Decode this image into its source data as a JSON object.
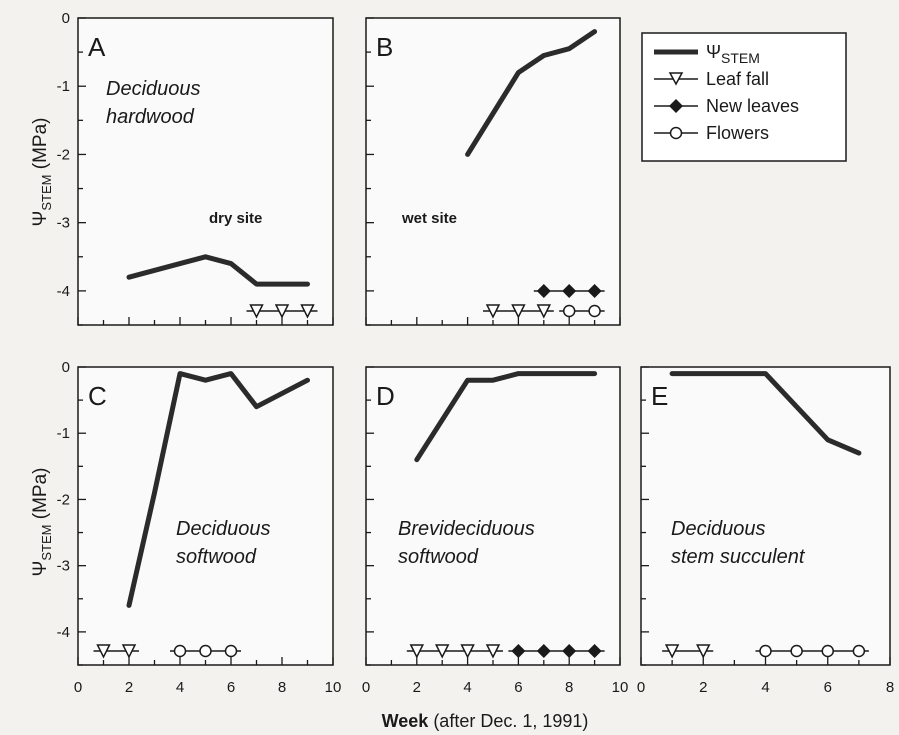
{
  "chart_data": {
    "type": "line",
    "ylabel": {
      "symbol": "Ψ",
      "sub": "STEM",
      "unit": " (MPa)"
    },
    "xlabel": {
      "bold": "Week",
      "rest": " (after Dec. 1, 1991)"
    },
    "legend": {
      "stem": {
        "symbol": "Ψ",
        "sub": "STEM"
      },
      "leaf_fall": "Leaf fall",
      "new_leaves": "New leaves",
      "flowers": "Flowers"
    },
    "panels": [
      {
        "letter": "A",
        "caption": [
          "Deciduous",
          "hardwood"
        ],
        "site": "dry site",
        "xlim": [
          0,
          10
        ],
        "ylim": [
          -4.5,
          0
        ],
        "show_xticklabels": false,
        "stem": [
          [
            2,
            -3.8
          ],
          [
            4,
            -3.6
          ],
          [
            5,
            -3.5
          ],
          [
            6,
            -3.6
          ],
          [
            7,
            -3.9
          ],
          [
            9,
            -3.9
          ]
        ],
        "leaf_fall": [
          7,
          8,
          9
        ],
        "new_leaves": [],
        "flowers": []
      },
      {
        "letter": "B",
        "caption": [],
        "site": "wet site",
        "xlim": [
          0,
          10
        ],
        "ylim": [
          -4.5,
          0
        ],
        "show_xticklabels": false,
        "stem": [
          [
            4,
            -2.0
          ],
          [
            5,
            -1.4
          ],
          [
            6,
            -0.8
          ],
          [
            7,
            -0.55
          ],
          [
            8,
            -0.45
          ],
          [
            9,
            -0.2
          ]
        ],
        "leaf_fall": [
          5,
          6,
          7
        ],
        "new_leaves": [
          7,
          8,
          9
        ],
        "flowers": [
          8,
          9
        ]
      },
      {
        "letter": "C",
        "caption": [
          "Deciduous",
          "softwood"
        ],
        "site": "",
        "xlim": [
          0,
          10
        ],
        "ylim": [
          -4.5,
          0
        ],
        "show_xticklabels": true,
        "stem": [
          [
            2,
            -3.6
          ],
          [
            3,
            -1.9
          ],
          [
            4,
            -0.1
          ],
          [
            5,
            -0.2
          ],
          [
            6,
            -0.1
          ],
          [
            7,
            -0.6
          ],
          [
            9,
            -0.2
          ]
        ],
        "leaf_fall": [
          1,
          2
        ],
        "new_leaves": [],
        "flowers": [
          4,
          5,
          6
        ]
      },
      {
        "letter": "D",
        "caption": [
          "Brevideciduous",
          "softwood"
        ],
        "site": "",
        "xlim": [
          0,
          10
        ],
        "ylim": [
          -4.5,
          0
        ],
        "show_xticklabels": true,
        "stem": [
          [
            2,
            -1.4
          ],
          [
            4,
            -0.2
          ],
          [
            5,
            -0.2
          ],
          [
            6,
            -0.1
          ],
          [
            9,
            -0.1
          ]
        ],
        "leaf_fall": [
          2,
          3,
          4,
          5
        ],
        "new_leaves": [
          6,
          7,
          8,
          9
        ],
        "flowers": []
      },
      {
        "letter": "E",
        "caption": [
          "Deciduous",
          "stem succulent"
        ],
        "site": "",
        "xlim": [
          0,
          8
        ],
        "ylim": [
          -4.5,
          0
        ],
        "show_xticklabels": true,
        "stem": [
          [
            1,
            -0.1
          ],
          [
            4,
            -0.1
          ],
          [
            5,
            -0.6
          ],
          [
            6,
            -1.1
          ],
          [
            7,
            -1.3
          ]
        ],
        "leaf_fall": [
          1,
          2
        ],
        "new_leaves": [],
        "flowers": [
          4,
          5,
          6,
          7
        ]
      }
    ],
    "y_ticks": [
      "0",
      "-1",
      "-2",
      "-3",
      "-4"
    ],
    "x_ticks_10": [
      "0",
      "2",
      "4",
      "6",
      "8",
      "10"
    ],
    "x_ticks_8": [
      "0",
      "2",
      "4",
      "6",
      "8"
    ]
  }
}
